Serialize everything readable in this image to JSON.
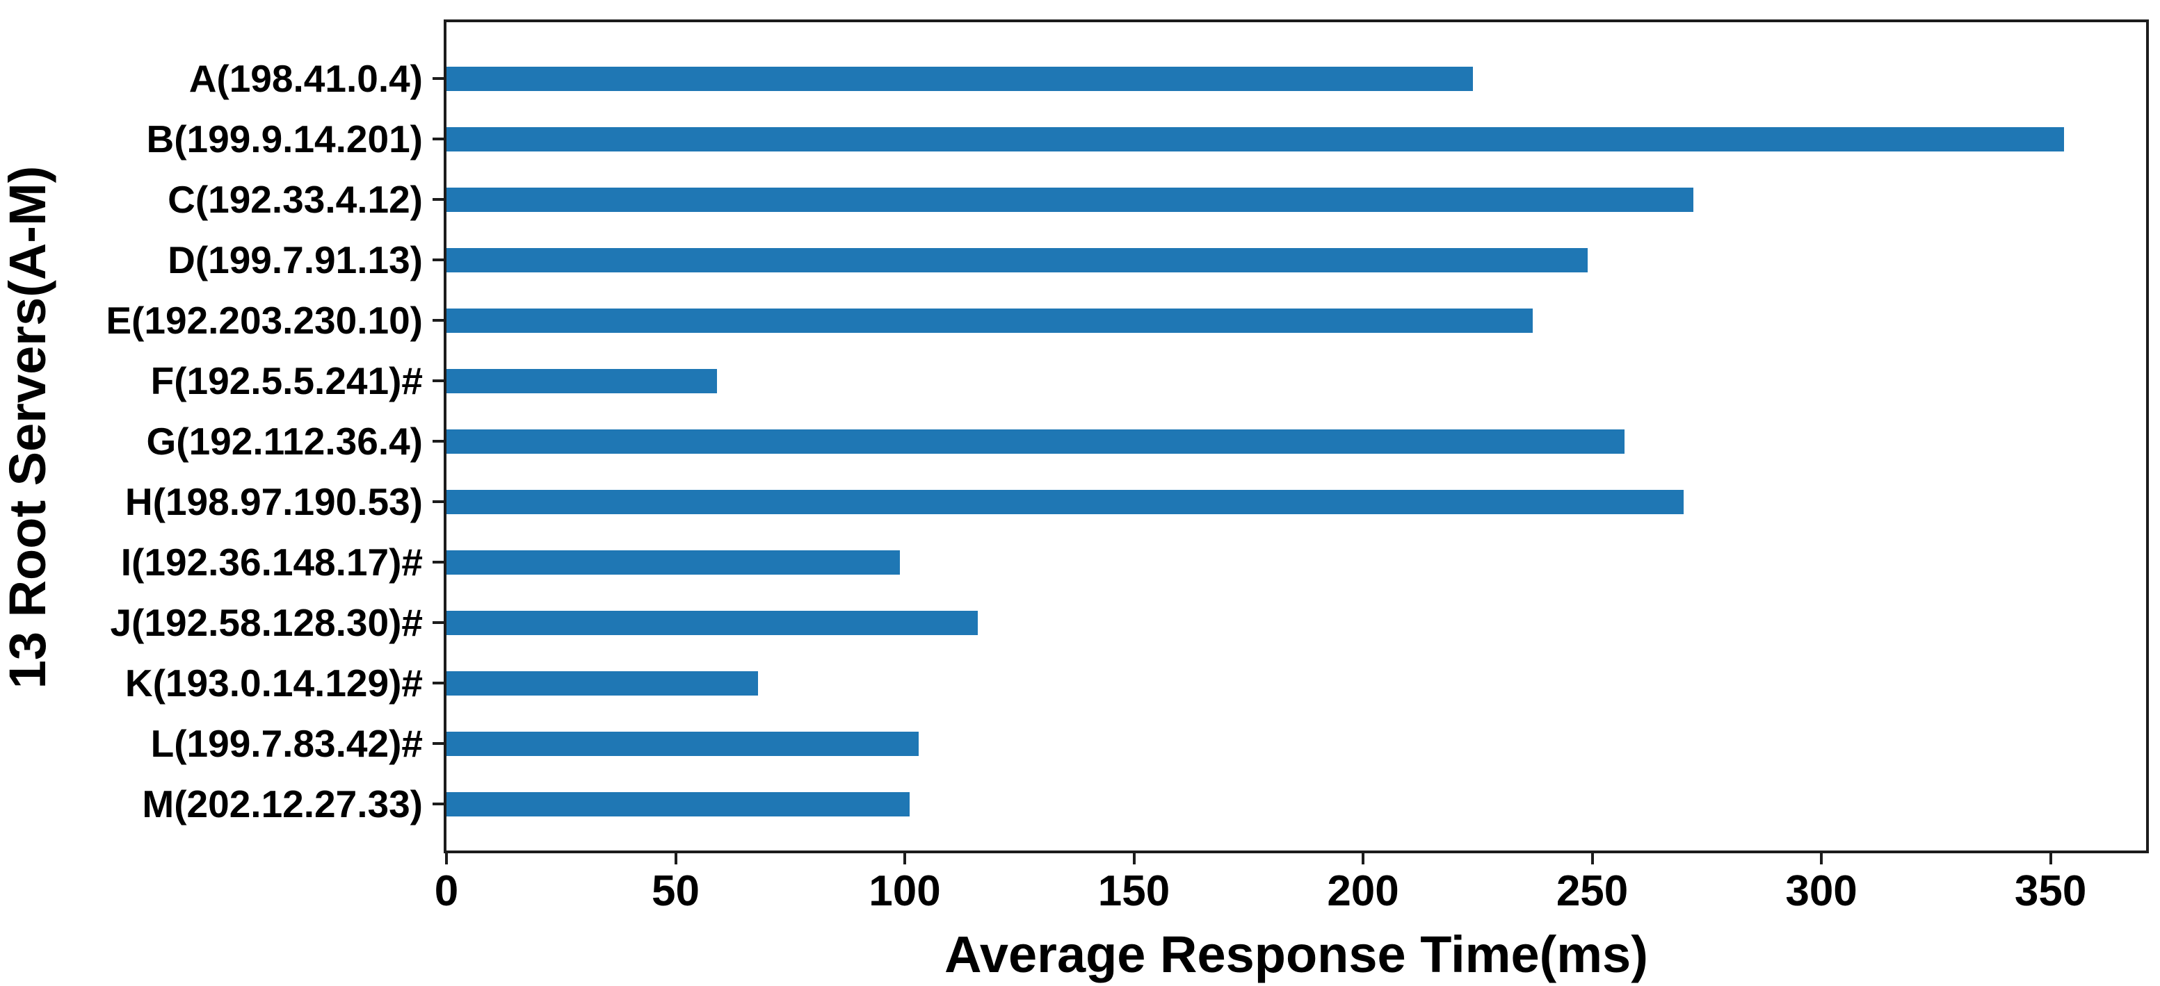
{
  "chart_data": {
    "type": "bar",
    "orientation": "horizontal",
    "title": "",
    "xlabel": "Average Response Time(ms)",
    "ylabel": "13 Root Servers(A-M)",
    "categories": [
      "A(198.41.0.4)",
      "B(199.9.14.201)",
      "C(192.33.4.12)",
      "D(199.7.91.13)",
      "E(192.203.230.10)",
      "F(192.5.5.241)#",
      "G(192.112.36.4)",
      "H(198.97.190.53)",
      "I(192.36.148.17)#",
      "J(192.58.128.30)#",
      "K(193.0.14.129)#",
      "L(199.7.83.42)#",
      "M(202.12.27.33)"
    ],
    "values": [
      224,
      353,
      272,
      249,
      237,
      59,
      257,
      270,
      99,
      116,
      68,
      103,
      101
    ],
    "unit": "ms",
    "xlim": [
      0,
      371
    ],
    "xticks": [
      0,
      50,
      100,
      150,
      200,
      250,
      300,
      350
    ],
    "bar_color": "#1f77b4",
    "axis_color": "#1c1c1c",
    "text_color": "#000000",
    "grid": false,
    "legend": null
  }
}
